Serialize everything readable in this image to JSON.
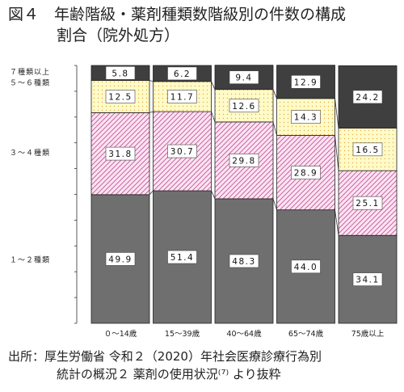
{
  "title_line1": "図４　年齢階級・薬剤種類数階級別の件数の構成",
  "title_line2": "割合（院外処方）",
  "source_line1": "出所：厚生労働省 令和２（2020）年社会医療診療行為別",
  "source_line2": "統計の概況２ 薬剤の使用状況⁽⁷⁾ より抜粋",
  "colors": {
    "seg1": "#6f6f6f",
    "seg2_fill": "#fbe3f0",
    "seg2_hatch": "#c0509a",
    "seg3_fill": "#fffbc8",
    "seg3_dot": "#e0b050",
    "seg4": "#3f3f3f",
    "label_bg": "#ffffff"
  },
  "chart_data": {
    "type": "bar",
    "stacked": true,
    "percent": true,
    "categories": [
      "０～14歳",
      "15～39歳",
      "40～64歳",
      "65～74歳",
      "75歳以上"
    ],
    "series": [
      {
        "name": "１～２種類",
        "values": [
          49.9,
          51.4,
          48.3,
          44.0,
          34.1
        ]
      },
      {
        "name": "３～４種類",
        "values": [
          31.8,
          30.7,
          29.8,
          28.9,
          25.1
        ]
      },
      {
        "name": "５～６種類",
        "values": [
          12.5,
          11.7,
          12.6,
          14.3,
          16.5
        ]
      },
      {
        "name": "７種類以上",
        "values": [
          5.8,
          6.2,
          9.4,
          12.9,
          24.2
        ]
      }
    ],
    "value_labels": [
      [
        "49.9",
        "51.4",
        "48.3",
        "44.0",
        "34.1"
      ],
      [
        "31.8",
        "30.7",
        "29.8",
        "28.9",
        "25.1"
      ],
      [
        "12.5",
        "11.7",
        "12.6",
        "14.3",
        "16.5"
      ],
      [
        "5.8",
        "6.2",
        "9.4",
        "12.9",
        "24.2"
      ]
    ],
    "ylim": [
      0,
      100
    ]
  }
}
